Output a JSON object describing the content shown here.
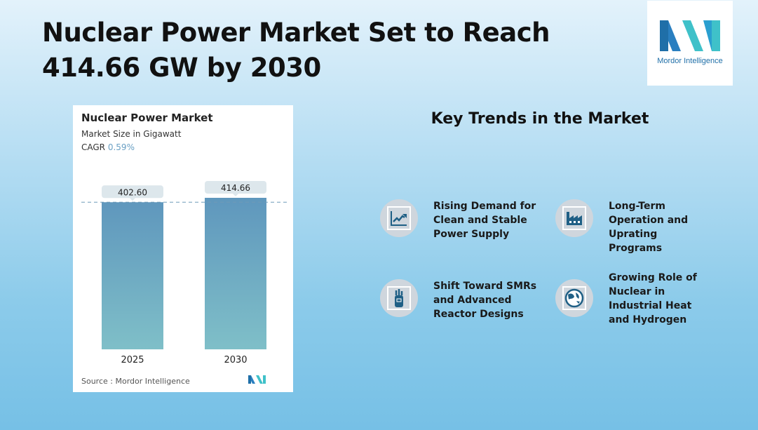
{
  "title": "Nuclear Power Market Set to Reach 414.66 GW by 2030",
  "logo": {
    "text": "Mordor Intelligence"
  },
  "card": {
    "title": "Nuclear Power Market",
    "subtitle": "Market Size in Gigawatt",
    "cagr_label": "CAGR",
    "cagr_value": "0.59%",
    "source": "Source :  Mordor Intelligence"
  },
  "chart_data": {
    "type": "bar",
    "title": "Nuclear Power Market",
    "ylabel": "Market Size in Gigawatt",
    "categories": [
      "2025",
      "2030"
    ],
    "values": [
      402.6,
      414.66
    ],
    "labels": [
      "402.60",
      "414.66"
    ],
    "ylim": [
      0,
      414.66
    ],
    "grid": false,
    "bar_color": "#5f97bd",
    "bar_color_bottom": "#7fbfc8"
  },
  "key_trends": {
    "heading": "Key Trends in the Market",
    "items": [
      {
        "label": "Rising Demand for Clean and Stable Power Supply",
        "icon": "line-chart-icon"
      },
      {
        "label": "Long-Term Operation and Uprating Programs",
        "icon": "factory-icon"
      },
      {
        "label": "Shift Toward SMRs and Advanced Reactor Designs",
        "icon": "golf-bag-icon"
      },
      {
        "label": "Growing Role of Nuclear in Industrial Heat and Hydrogen",
        "icon": "globe-icon"
      }
    ]
  },
  "colors": {
    "icon": "#1f5f85",
    "accent": "#6aa0c4"
  }
}
